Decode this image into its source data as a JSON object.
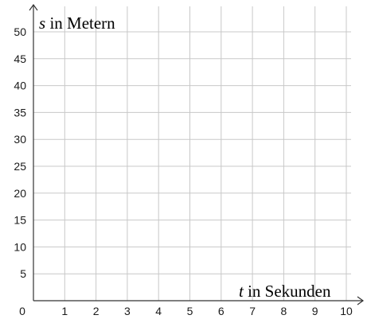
{
  "chart_data": {
    "type": "line",
    "title": "",
    "x_axis": {
      "variable": "t",
      "label_text": " in Sekunden",
      "min": 0,
      "max": 10,
      "ticks": [
        1,
        2,
        3,
        4,
        5,
        6,
        7,
        8,
        9,
        10
      ]
    },
    "y_axis": {
      "variable": "s",
      "label_text": " in Metern",
      "min": 0,
      "max": 50,
      "ticks": [
        5,
        10,
        15,
        20,
        25,
        30,
        35,
        40,
        45,
        50
      ]
    },
    "origin_label": "0",
    "grid": true,
    "series": []
  }
}
